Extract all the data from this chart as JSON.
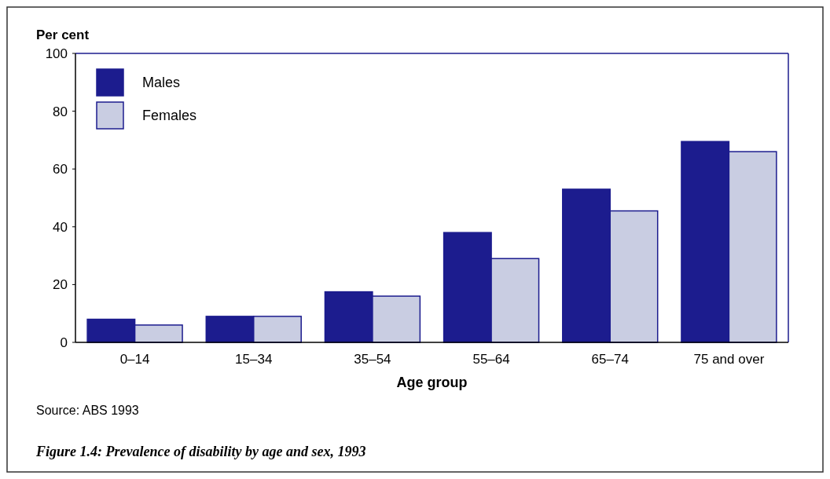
{
  "chart_data": {
    "type": "bar",
    "title": "Figure 1.4: Prevalence of disability by age and sex, 1993",
    "xlabel": "Age group",
    "ylabel": "Per cent",
    "annotations": [
      "Source: ABS 1993"
    ],
    "categories": [
      "0–14",
      "15–34",
      "35–54",
      "55–64",
      "65–74",
      "75 and over"
    ],
    "series": [
      {
        "name": "Males",
        "color": "#1c1c8e",
        "values": [
          8,
          9,
          17.5,
          38,
          53,
          69.5
        ]
      },
      {
        "name": "Females",
        "color": "#c9cde2",
        "values": [
          6,
          9,
          16,
          29,
          45.5,
          66
        ]
      }
    ],
    "ylim": [
      0,
      100
    ],
    "yticks": [
      0,
      20,
      40,
      60,
      80,
      100
    ],
    "grid": false,
    "legend": "top left"
  }
}
